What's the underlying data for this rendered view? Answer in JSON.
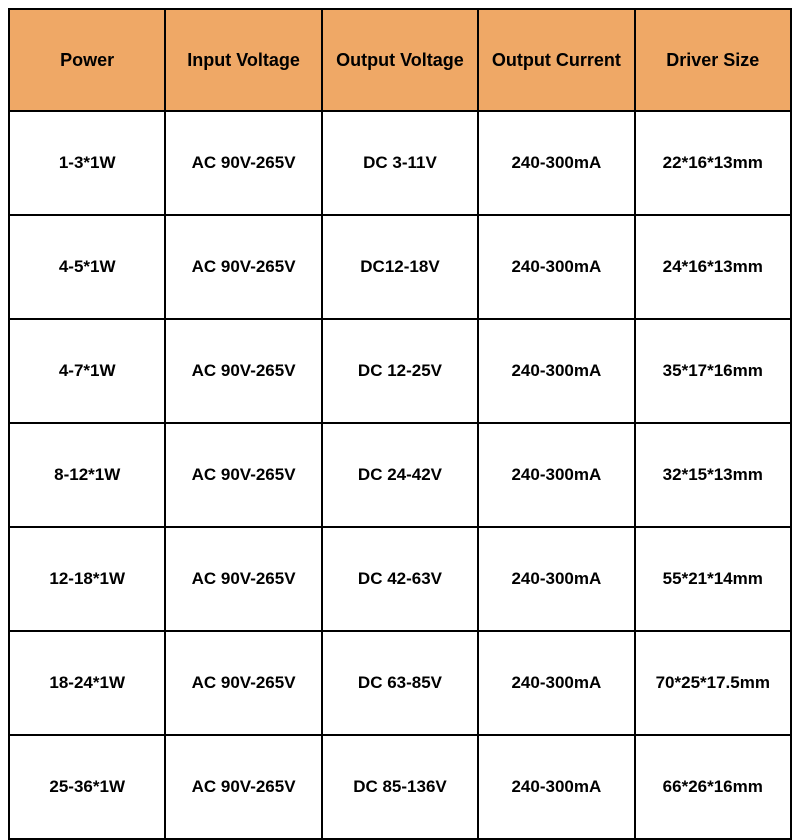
{
  "table": {
    "header_bg": "#efa866",
    "header_fontsize": 18,
    "cell_fontsize": 17,
    "border_color": "#000000",
    "columns": [
      {
        "label": "Power"
      },
      {
        "label": "Input Voltage"
      },
      {
        "label": "Output Voltage"
      },
      {
        "label": "Output Current"
      },
      {
        "label": "Driver Size"
      }
    ],
    "rows": [
      [
        "1-3*1W",
        "AC 90V-265V",
        "DC 3-11V",
        "240-300mA",
        "22*16*13mm"
      ],
      [
        "4-5*1W",
        "AC 90V-265V",
        "DC12-18V",
        "240-300mA",
        "24*16*13mm"
      ],
      [
        "4-7*1W",
        "AC 90V-265V",
        "DC 12-25V",
        "240-300mA",
        "35*17*16mm"
      ],
      [
        "8-12*1W",
        "AC 90V-265V",
        "DC 24-42V",
        "240-300mA",
        "32*15*13mm"
      ],
      [
        "12-18*1W",
        "AC 90V-265V",
        "DC 42-63V",
        "240-300mA",
        "55*21*14mm"
      ],
      [
        "18-24*1W",
        "AC 90V-265V",
        "DC 63-85V",
        "240-300mA",
        "70*25*17.5mm"
      ],
      [
        "25-36*1W",
        "AC 90V-265V",
        "DC 85-136V",
        "240-300mA",
        "66*26*16mm"
      ]
    ]
  }
}
